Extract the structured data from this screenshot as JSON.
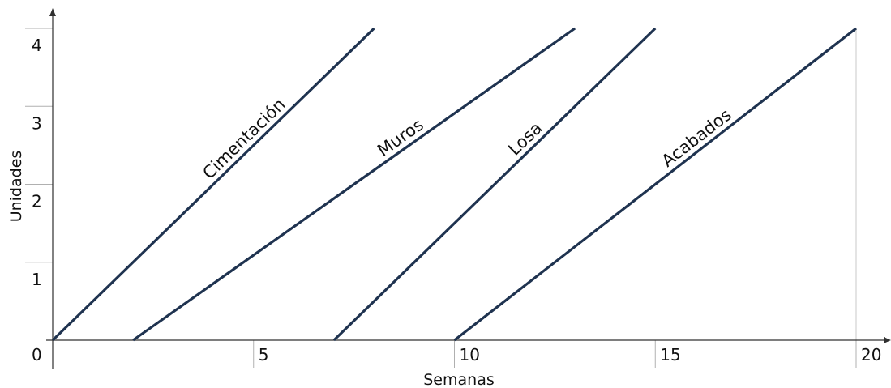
{
  "chart_data": {
    "type": "line",
    "xlabel": "Semanas",
    "ylabel": "Unidades",
    "xlim": [
      0,
      20
    ],
    "ylim": [
      0,
      4
    ],
    "x_ticks": [
      0,
      5,
      10,
      15,
      20
    ],
    "y_ticks": [
      1,
      2,
      3,
      4
    ],
    "tick_labels_x": [
      "0",
      "5",
      "10",
      "15",
      "20"
    ],
    "tick_labels_y": [
      "1",
      "2",
      "3",
      "4"
    ],
    "grid": "vertical line at x=20 only",
    "legend": "none (series labeled inline along lines)",
    "line_color": "#1f3350",
    "series": [
      {
        "name": "Cimentación",
        "x": [
          0,
          8
        ],
        "y": [
          0,
          4
        ]
      },
      {
        "name": "Muros",
        "x": [
          2,
          13
        ],
        "y": [
          0,
          4
        ]
      },
      {
        "name": "Losa",
        "x": [
          7,
          15
        ],
        "y": [
          0,
          4
        ]
      },
      {
        "name": "Acabados",
        "x": [
          10,
          20
        ],
        "y": [
          0,
          4
        ]
      }
    ]
  }
}
